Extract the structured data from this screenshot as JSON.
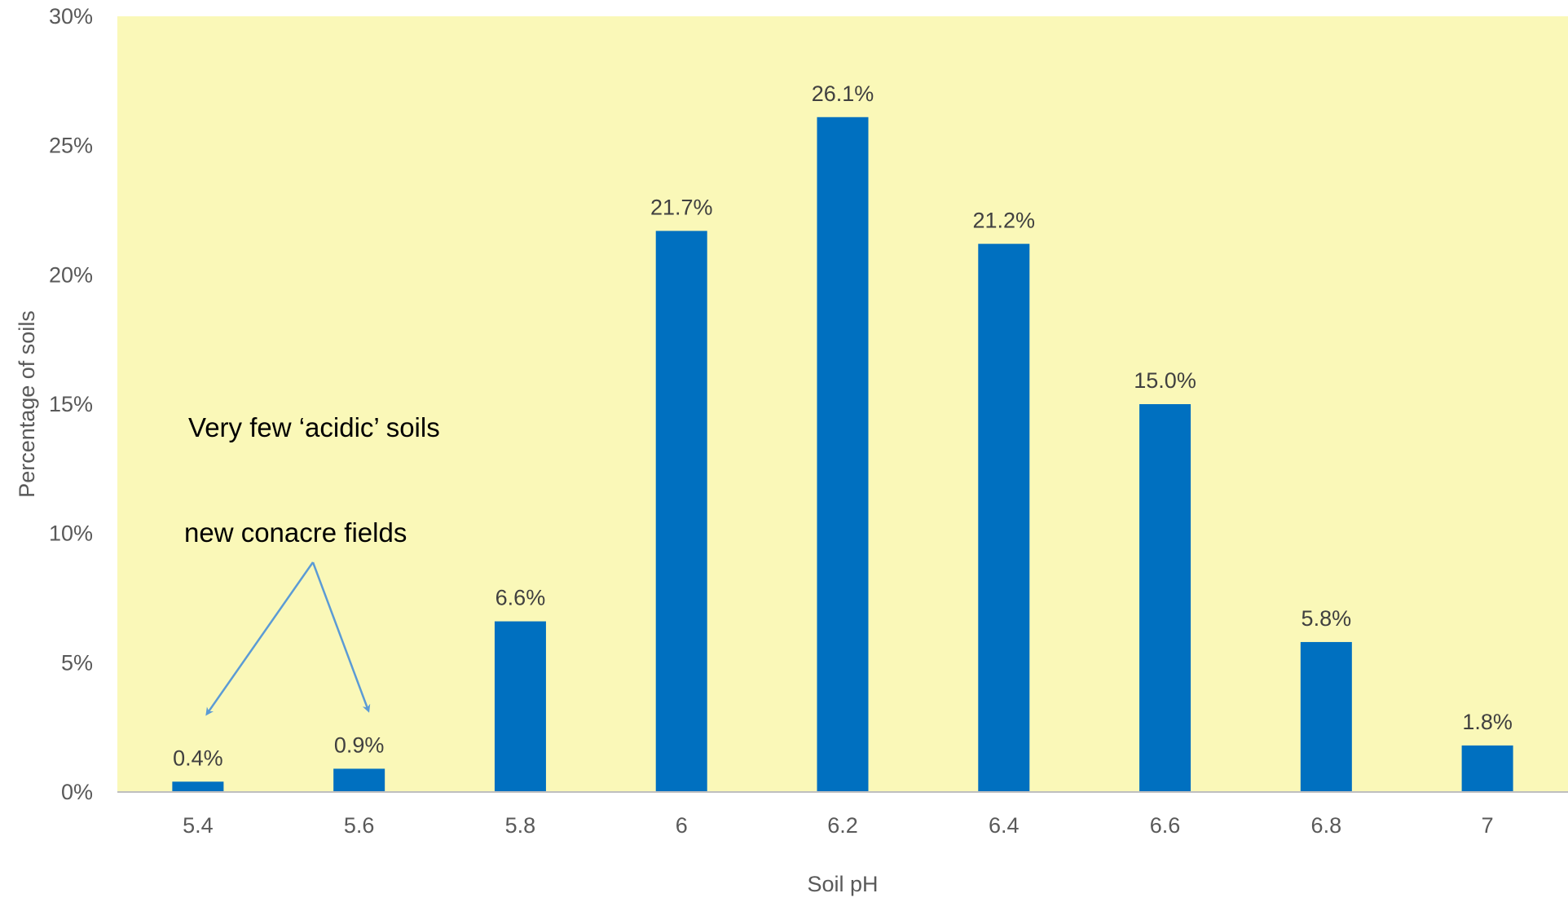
{
  "chart_data": {
    "type": "bar",
    "categories": [
      "5.4",
      "5.6",
      "5.8",
      "6",
      "6.2",
      "6.4",
      "6.6",
      "6.8",
      "7"
    ],
    "values": [
      0.4,
      0.9,
      6.6,
      21.7,
      26.1,
      21.2,
      15.0,
      5.8,
      1.8
    ],
    "data_labels": [
      "0.4%",
      "0.9%",
      "6.6%",
      "21.7%",
      "26.1%",
      "21.2%",
      "15.0%",
      "5.8%",
      "1.8%"
    ],
    "xlabel": "Soil pH",
    "ylabel": "Percentage of soils",
    "ylim": [
      0,
      30
    ],
    "y_ticks": [
      "0%",
      "5%",
      "10%",
      "15%",
      "20%",
      "25%",
      "30%"
    ],
    "grid": false,
    "legend": "none",
    "annotations": {
      "heading": "Very few ‘acidic’ soils",
      "arrow_label": "new conacre fields",
      "arrow_targets": [
        "5.4",
        "5.6"
      ]
    },
    "colors": {
      "bar": "#0070c0",
      "plot_background": "#faf8b8",
      "arrow": "#5b9bd5"
    }
  }
}
